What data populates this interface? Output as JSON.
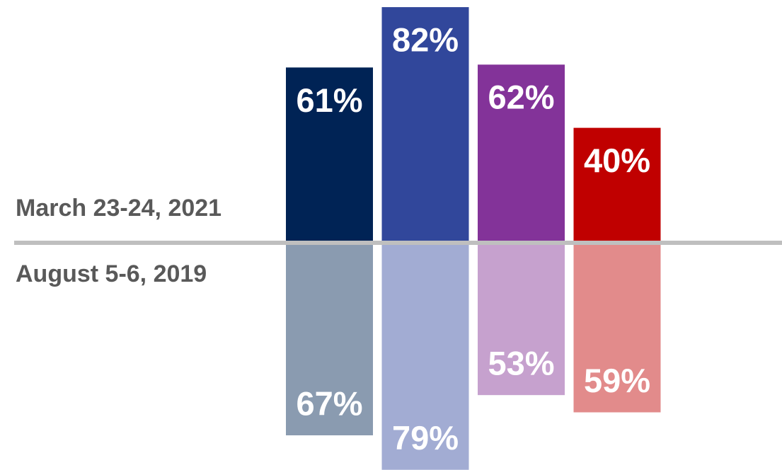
{
  "chart_data": {
    "type": "mirrored-bar",
    "categories": [
      null,
      null,
      null,
      null
    ],
    "series": [
      {
        "name": "March 23-24, 2021",
        "direction": "up",
        "colors": [
          "#002355",
          "#31479b",
          "#833399",
          "#c00000"
        ],
        "values": [
          61,
          82,
          62,
          40
        ],
        "value_labels": [
          "61%",
          "82%",
          "62%",
          "40%"
        ]
      },
      {
        "name": "August 5-6, 2019",
        "direction": "down",
        "colors": [
          "#8a9bb0",
          "#a2acd3",
          "#c6a1ce",
          "#e28b8b"
        ],
        "values": [
          67,
          79,
          53,
          59
        ],
        "value_labels": [
          "67%",
          "79%",
          "53%",
          "59%"
        ]
      }
    ]
  }
}
